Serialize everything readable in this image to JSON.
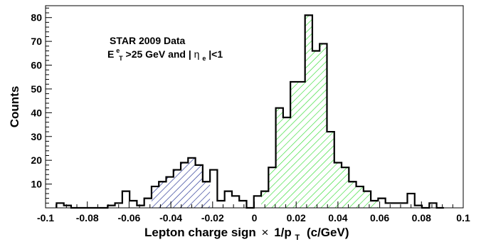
{
  "chart_data": {
    "type": "bar",
    "title": "",
    "xlabel": "Lepton charge sign",
    "xlabel_times": "×",
    "xlabel_tail": "1/p",
    "xlabel_sub": "T",
    "xlabel_unit": "(c/GeV)",
    "ylabel": "Counts",
    "xlim": [
      -0.1,
      0.1
    ],
    "ylim": [
      0,
      85
    ],
    "x_ticks": [
      -0.1,
      -0.08,
      -0.06,
      -0.04,
      -0.02,
      0,
      0.02,
      0.04,
      0.06,
      0.08,
      0.1
    ],
    "x_tick_labels": [
      "-0.1",
      "-0.08",
      "-0.06",
      "-0.04",
      "-0.02",
      "0",
      "0.02",
      "0.04",
      "0.06",
      "0.08",
      "0.1"
    ],
    "y_ticks": [
      10,
      20,
      30,
      40,
      50,
      60,
      70,
      80
    ],
    "y_tick_labels": [
      "10",
      "20",
      "30",
      "40",
      "50",
      "60",
      "70",
      "80"
    ],
    "bin_width": 0.0035,
    "bin_start": -0.0945,
    "series": [
      {
        "bins": [
          {
            "x": -0.093,
            "count": 2
          },
          {
            "x": -0.0895,
            "count": 1
          },
          {
            "x": -0.086,
            "count": 0
          },
          {
            "x": -0.0825,
            "count": 0
          },
          {
            "x": -0.079,
            "count": 0
          },
          {
            "x": -0.0755,
            "count": 0
          },
          {
            "x": -0.072,
            "count": 0
          },
          {
            "x": -0.0685,
            "count": 1
          },
          {
            "x": -0.065,
            "count": 2
          },
          {
            "x": -0.0615,
            "count": 7
          },
          {
            "x": -0.058,
            "count": 3
          },
          {
            "x": -0.0545,
            "count": 1
          },
          {
            "x": -0.051,
            "count": 4
          },
          {
            "x": -0.0475,
            "count": 9
          },
          {
            "x": -0.044,
            "count": 11
          },
          {
            "x": -0.0405,
            "count": 13
          },
          {
            "x": -0.037,
            "count": 16
          },
          {
            "x": -0.0335,
            "count": 19
          },
          {
            "x": -0.03,
            "count": 21
          },
          {
            "x": -0.0265,
            "count": 18
          },
          {
            "x": -0.023,
            "count": 11
          },
          {
            "x": -0.0195,
            "count": 16
          },
          {
            "x": -0.016,
            "count": 3
          },
          {
            "x": -0.0125,
            "count": 7
          },
          {
            "x": -0.009,
            "count": 5
          },
          {
            "x": -0.0055,
            "count": 3
          },
          {
            "x": -0.002,
            "count": 0
          },
          {
            "x": 0.0015,
            "count": 5
          },
          {
            "x": 0.005,
            "count": 7
          },
          {
            "x": 0.0085,
            "count": 17
          },
          {
            "x": 0.012,
            "count": 42
          },
          {
            "x": 0.0155,
            "count": 38
          },
          {
            "x": 0.019,
            "count": 53
          },
          {
            "x": 0.0225,
            "count": 53
          },
          {
            "x": 0.026,
            "count": 81
          },
          {
            "x": 0.0295,
            "count": 66
          },
          {
            "x": 0.033,
            "count": 69
          },
          {
            "x": 0.0365,
            "count": 32
          },
          {
            "x": 0.04,
            "count": 19
          },
          {
            "x": 0.0435,
            "count": 17
          },
          {
            "x": 0.047,
            "count": 11
          },
          {
            "x": 0.0505,
            "count": 9
          },
          {
            "x": 0.054,
            "count": 7
          },
          {
            "x": 0.0575,
            "count": 3
          },
          {
            "x": 0.061,
            "count": 4
          },
          {
            "x": 0.0645,
            "count": 2
          },
          {
            "x": 0.068,
            "count": 2
          },
          {
            "x": 0.0715,
            "count": 2
          },
          {
            "x": 0.075,
            "count": 6
          },
          {
            "x": 0.0785,
            "count": 1
          },
          {
            "x": 0.082,
            "count": 0
          },
          {
            "x": 0.0855,
            "count": 2
          },
          {
            "x": 0.089,
            "count": 0
          }
        ]
      }
    ],
    "fill_negative": {
      "range": [
        -0.051,
        -0.023
      ],
      "color": "#1d2b8f",
      "pattern": "diagonal hatch"
    },
    "fill_positive": {
      "range": [
        0.0,
        0.058
      ],
      "color": "#33dd33",
      "pattern": "diagonal hatch"
    },
    "line_color": "#000000",
    "annotation": {
      "line1": "STAR 2009 Data",
      "line2_E": "E",
      "line2_sup": "e",
      "line2_sub": "T",
      "line2_mid": ">25 GeV and |",
      "line2_eta": "η",
      "line2_eta_sub": "e",
      "line2_end": "|<1"
    },
    "legend": "none",
    "grid": false
  }
}
